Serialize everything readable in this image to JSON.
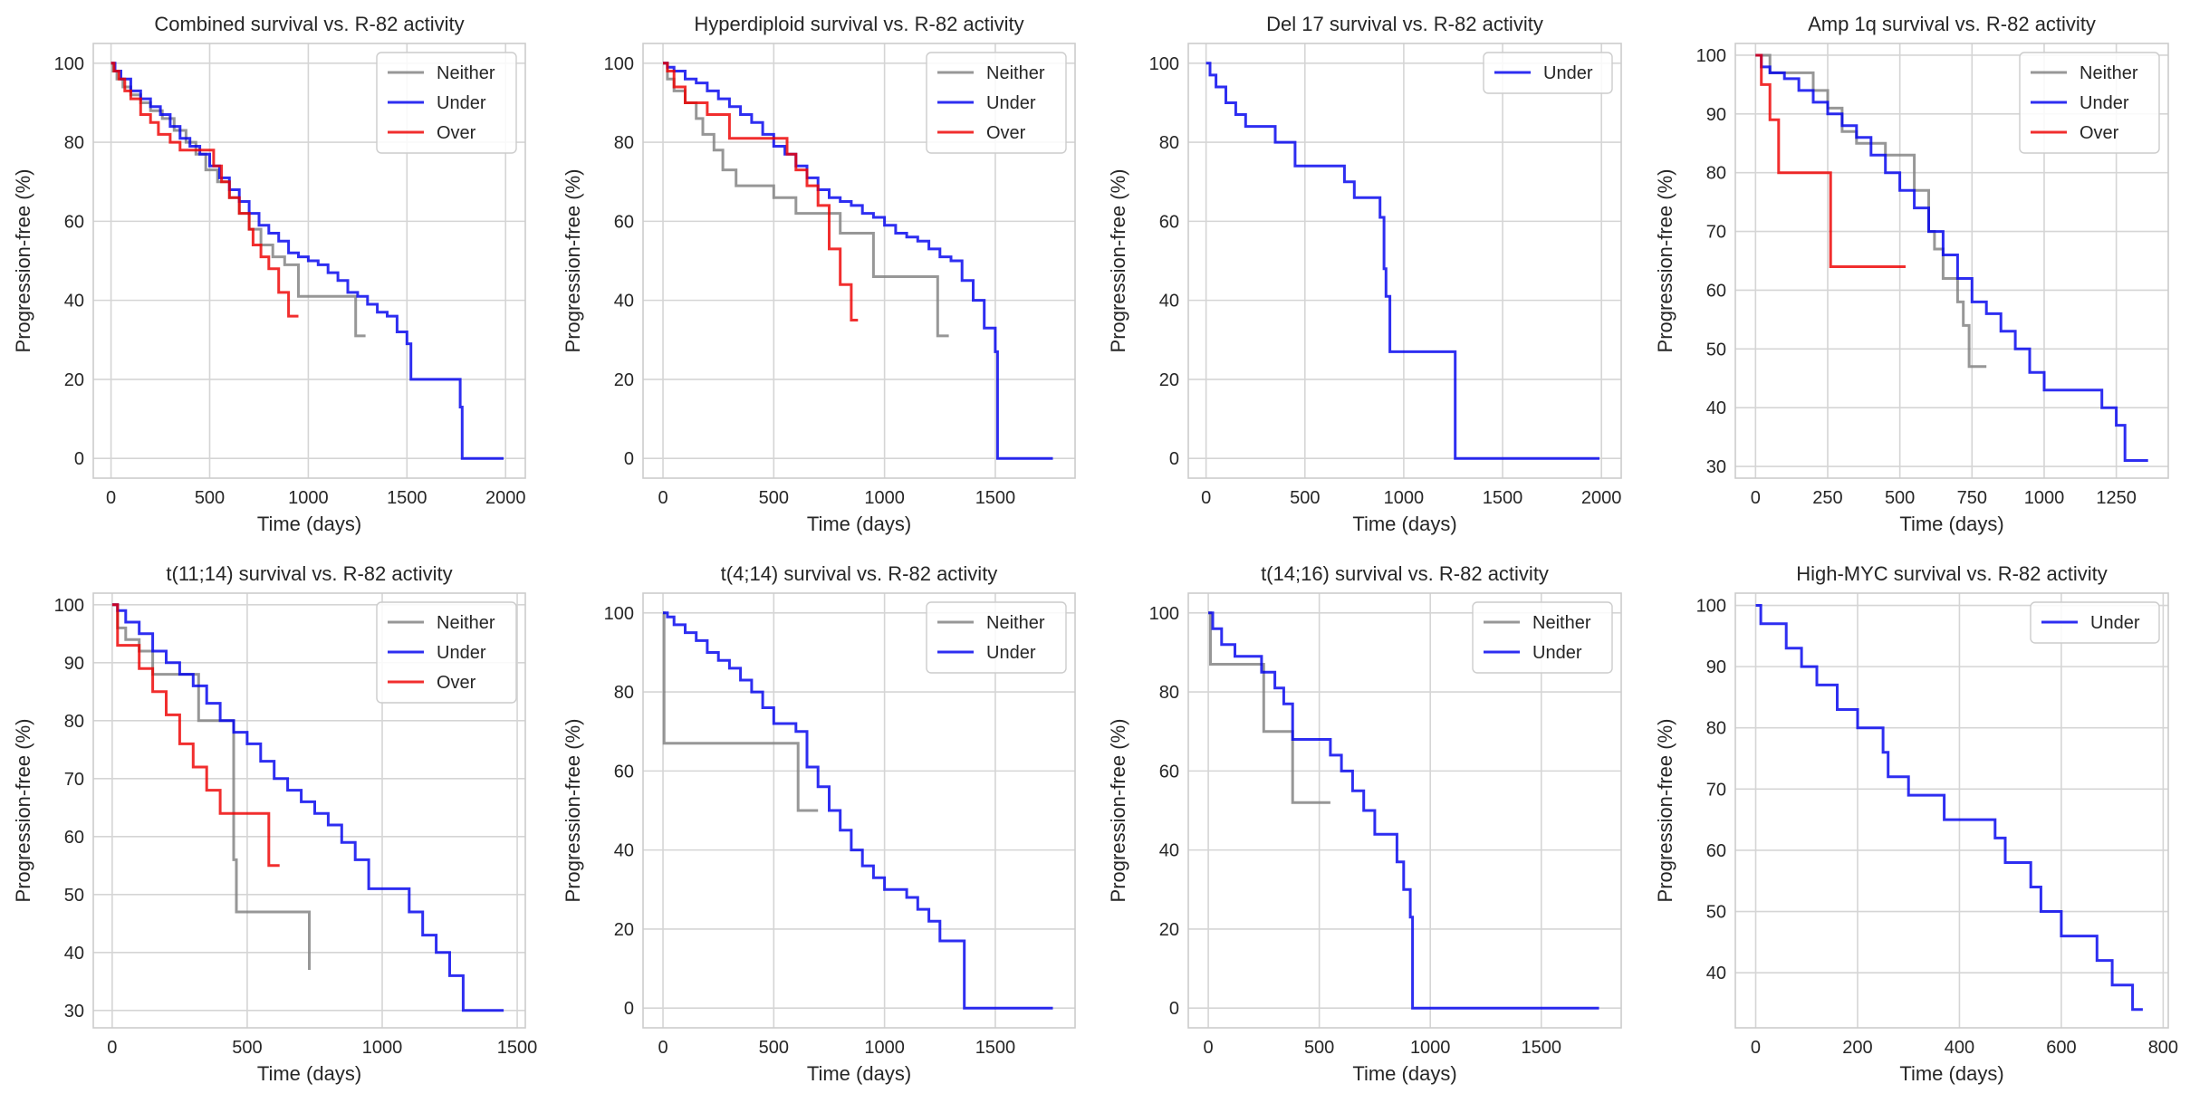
{
  "colors": {
    "Neither": "#808080",
    "Under": "#0000ee",
    "Over": "#ee0000"
  },
  "chart_data": [
    {
      "type": "line",
      "step": true,
      "title": "Combined survival vs. R-82 activity",
      "xlabel": "Time (days)",
      "ylabel": "Progression-free (%)",
      "xlim": [
        -90,
        2100
      ],
      "ylim": [
        -5,
        105
      ],
      "xticks": [
        0,
        500,
        1000,
        1500,
        2000
      ],
      "yticks": [
        0,
        20,
        40,
        60,
        80,
        100
      ],
      "legend": [
        "Neither",
        "Under",
        "Over"
      ],
      "series": [
        {
          "name": "Neither",
          "x": [
            0,
            10,
            30,
            60,
            100,
            150,
            200,
            260,
            320,
            380,
            430,
            480,
            540,
            600,
            650,
            700,
            760,
            820,
            880,
            950,
            1050,
            1150,
            1240,
            1290
          ],
          "y": [
            100,
            98,
            96,
            94,
            92,
            90,
            88,
            86,
            83,
            80,
            77,
            73,
            70,
            66,
            62,
            58,
            54,
            51,
            49,
            41,
            41,
            41,
            31,
            31
          ]
        },
        {
          "name": "Under",
          "x": [
            0,
            20,
            50,
            100,
            150,
            200,
            250,
            300,
            350,
            400,
            450,
            500,
            550,
            600,
            650,
            700,
            750,
            800,
            850,
            900,
            950,
            1000,
            1050,
            1100,
            1150,
            1200,
            1250,
            1300,
            1350,
            1400,
            1450,
            1500,
            1520,
            1600,
            1700,
            1770,
            1780,
            1800,
            1900,
            1990
          ],
          "y": [
            100,
            98,
            96,
            93,
            91,
            89,
            87,
            84,
            81,
            79,
            77,
            74,
            71,
            68,
            65,
            62,
            59,
            57,
            55,
            52,
            51,
            50,
            49,
            47,
            45,
            42,
            41,
            39,
            37,
            36,
            32,
            29,
            20,
            20,
            20,
            13,
            0,
            0,
            0,
            0
          ]
        },
        {
          "name": "Over",
          "x": [
            0,
            15,
            40,
            70,
            100,
            150,
            200,
            240,
            300,
            350,
            400,
            500,
            520,
            560,
            600,
            650,
            700,
            720,
            760,
            800,
            850,
            900,
            950
          ],
          "y": [
            100,
            98,
            96,
            93,
            91,
            87,
            85,
            82,
            80,
            78,
            78,
            78,
            74,
            70,
            66,
            62,
            58,
            54,
            51,
            48,
            42,
            36,
            36
          ]
        }
      ]
    },
    {
      "type": "line",
      "step": true,
      "title": "Hyperdiploid survival vs. R-82 activity",
      "xlabel": "Time (days)",
      "ylabel": "Progression-free (%)",
      "xlim": [
        -90,
        1860
      ],
      "ylim": [
        -5,
        105
      ],
      "xticks": [
        0,
        500,
        1000,
        1500
      ],
      "yticks": [
        0,
        20,
        40,
        60,
        80,
        100
      ],
      "legend": [
        "Neither",
        "Under",
        "Over"
      ],
      "series": [
        {
          "name": "Neither",
          "x": [
            0,
            20,
            50,
            100,
            150,
            180,
            230,
            270,
            330,
            400,
            500,
            560,
            600,
            700,
            800,
            950,
            1100,
            1240,
            1290
          ],
          "y": [
            100,
            96,
            93,
            90,
            86,
            82,
            78,
            73,
            69,
            69,
            66,
            66,
            62,
            62,
            57,
            46,
            46,
            31,
            31
          ]
        },
        {
          "name": "Under",
          "x": [
            0,
            20,
            50,
            100,
            150,
            200,
            250,
            300,
            350,
            400,
            450,
            500,
            550,
            600,
            650,
            700,
            750,
            800,
            850,
            900,
            950,
            1000,
            1050,
            1100,
            1150,
            1200,
            1250,
            1300,
            1350,
            1400,
            1450,
            1500,
            1510,
            1520,
            1600,
            1700,
            1760
          ],
          "y": [
            100,
            99,
            98,
            96,
            95,
            93,
            91,
            89,
            87,
            85,
            82,
            79,
            77,
            74,
            71,
            68,
            66,
            65,
            64,
            62,
            61,
            59,
            57,
            56,
            55,
            53,
            51,
            50,
            45,
            40,
            33,
            27,
            0,
            0,
            0,
            0,
            0
          ]
        },
        {
          "name": "Over",
          "x": [
            0,
            20,
            50,
            100,
            150,
            200,
            300,
            400,
            500,
            560,
            600,
            650,
            700,
            750,
            800,
            850,
            880
          ],
          "y": [
            100,
            98,
            94,
            90,
            90,
            87,
            81,
            81,
            81,
            77,
            73,
            69,
            64,
            53,
            44,
            35,
            35
          ]
        }
      ]
    },
    {
      "type": "line",
      "step": true,
      "title": "Del 17 survival vs. R-82 activity",
      "xlabel": "Time (days)",
      "ylabel": "Progression-free (%)",
      "xlim": [
        -90,
        2100
      ],
      "ylim": [
        -5,
        105
      ],
      "xticks": [
        0,
        500,
        1000,
        1500,
        2000
      ],
      "yticks": [
        0,
        20,
        40,
        60,
        80,
        100
      ],
      "legend": [
        "Under"
      ],
      "series": [
        {
          "name": "Under",
          "x": [
            0,
            20,
            50,
            100,
            150,
            200,
            350,
            450,
            550,
            650,
            700,
            750,
            880,
            900,
            910,
            930,
            1000,
            1240,
            1260,
            1500,
            1990
          ],
          "y": [
            100,
            97,
            94,
            90,
            87,
            84,
            80,
            74,
            74,
            74,
            70,
            66,
            61,
            48,
            41,
            27,
            27,
            27,
            0,
            0,
            0
          ]
        }
      ]
    },
    {
      "type": "line",
      "step": true,
      "title": "Amp 1q survival vs. R-82 activity",
      "xlabel": "Time (days)",
      "ylabel": "Progression-free (%)",
      "xlim": [
        -70,
        1430
      ],
      "ylim": [
        28,
        102
      ],
      "xticks": [
        0,
        250,
        500,
        750,
        1000,
        1250
      ],
      "yticks": [
        30,
        40,
        50,
        60,
        70,
        80,
        90,
        100
      ],
      "legend": [
        "Neither",
        "Under",
        "Over"
      ],
      "series": [
        {
          "name": "Neither",
          "x": [
            0,
            50,
            100,
            200,
            250,
            300,
            350,
            450,
            550,
            600,
            620,
            650,
            700,
            720,
            740,
            800
          ],
          "y": [
            100,
            97,
            97,
            94,
            91,
            87,
            85,
            83,
            77,
            70,
            67,
            62,
            58,
            54,
            47,
            47
          ]
        },
        {
          "name": "Under",
          "x": [
            0,
            20,
            50,
            100,
            150,
            200,
            250,
            300,
            350,
            400,
            450,
            500,
            550,
            600,
            650,
            700,
            750,
            800,
            850,
            900,
            950,
            1000,
            1050,
            1100,
            1150,
            1200,
            1250,
            1280,
            1300,
            1360
          ],
          "y": [
            100,
            98,
            97,
            96,
            94,
            92,
            90,
            88,
            86,
            83,
            80,
            77,
            74,
            70,
            66,
            62,
            58,
            56,
            53,
            50,
            46,
            43,
            43,
            43,
            43,
            40,
            37,
            31,
            31,
            31
          ]
        },
        {
          "name": "Over",
          "x": [
            0,
            20,
            50,
            80,
            150,
            260,
            300,
            400,
            520
          ],
          "y": [
            100,
            95,
            89,
            80,
            80,
            64,
            64,
            64,
            64
          ]
        }
      ]
    },
    {
      "type": "line",
      "step": true,
      "title": "t(11;14) survival vs. R-82 activity",
      "xlabel": "Time (days)",
      "ylabel": "Progression-free (%)",
      "xlim": [
        -70,
        1530
      ],
      "ylim": [
        27,
        102
      ],
      "xticks": [
        0,
        500,
        1000,
        1500
      ],
      "yticks": [
        30,
        40,
        50,
        60,
        70,
        80,
        90,
        100
      ],
      "legend": [
        "Neither",
        "Under",
        "Over"
      ],
      "series": [
        {
          "name": "Neither",
          "x": [
            0,
            20,
            50,
            100,
            150,
            200,
            250,
            320,
            380,
            440,
            450,
            460,
            470,
            600,
            700,
            730
          ],
          "y": [
            100,
            96,
            94,
            92,
            88,
            88,
            88,
            80,
            80,
            80,
            56,
            47,
            47,
            47,
            47,
            37
          ]
        },
        {
          "name": "Under",
          "x": [
            0,
            20,
            50,
            100,
            150,
            200,
            250,
            300,
            350,
            400,
            450,
            500,
            550,
            600,
            650,
            700,
            750,
            800,
            850,
            900,
            950,
            1000,
            1050,
            1100,
            1150,
            1200,
            1250,
            1300,
            1450
          ],
          "y": [
            100,
            99,
            97,
            95,
            92,
            90,
            88,
            86,
            83,
            80,
            78,
            76,
            73,
            70,
            68,
            66,
            64,
            62,
            59,
            56,
            51,
            51,
            51,
            47,
            43,
            40,
            36,
            30,
            30
          ]
        },
        {
          "name": "Over",
          "x": [
            0,
            20,
            60,
            100,
            150,
            200,
            250,
            300,
            350,
            400,
            450,
            500,
            550,
            580,
            600,
            620
          ],
          "y": [
            100,
            93,
            93,
            89,
            85,
            81,
            76,
            72,
            68,
            64,
            64,
            64,
            64,
            55,
            55,
            55
          ]
        }
      ]
    },
    {
      "type": "line",
      "step": true,
      "title": "t(4;14) survival vs. R-82 activity",
      "xlabel": "Time (days)",
      "ylabel": "Progression-free (%)",
      "xlim": [
        -90,
        1860
      ],
      "ylim": [
        -5,
        105
      ],
      "xticks": [
        0,
        500,
        1000,
        1500
      ],
      "yticks": [
        0,
        20,
        40,
        60,
        80,
        100
      ],
      "legend": [
        "Neither",
        "Under"
      ],
      "series": [
        {
          "name": "Neither",
          "x": [
            0,
            5,
            10,
            400,
            600,
            610,
            700
          ],
          "y": [
            100,
            67,
            67,
            67,
            67,
            50,
            50
          ]
        },
        {
          "name": "Under",
          "x": [
            0,
            20,
            50,
            100,
            150,
            200,
            250,
            300,
            350,
            400,
            450,
            500,
            550,
            600,
            650,
            700,
            750,
            800,
            850,
            900,
            950,
            1000,
            1050,
            1100,
            1150,
            1200,
            1250,
            1300,
            1350,
            1360,
            1500,
            1760
          ],
          "y": [
            100,
            99,
            97,
            95,
            93,
            90,
            88,
            86,
            83,
            80,
            76,
            72,
            72,
            70,
            61,
            56,
            50,
            45,
            40,
            36,
            33,
            30,
            30,
            28,
            25,
            22,
            17,
            17,
            17,
            0,
            0,
            0
          ]
        }
      ]
    },
    {
      "type": "line",
      "step": true,
      "title": "t(14;16) survival vs. R-82 activity",
      "xlabel": "Time (days)",
      "ylabel": "Progression-free (%)",
      "xlim": [
        -90,
        1860
      ],
      "ylim": [
        -5,
        105
      ],
      "xticks": [
        0,
        500,
        1000,
        1500
      ],
      "yticks": [
        0,
        20,
        40,
        60,
        80,
        100
      ],
      "legend": [
        "Neither",
        "Under"
      ],
      "series": [
        {
          "name": "Neither",
          "x": [
            0,
            10,
            50,
            200,
            250,
            300,
            380,
            450,
            550
          ],
          "y": [
            100,
            87,
            87,
            87,
            70,
            70,
            52,
            52,
            52
          ]
        },
        {
          "name": "Under",
          "x": [
            0,
            20,
            60,
            120,
            180,
            240,
            300,
            340,
            380,
            450,
            550,
            600,
            650,
            700,
            750,
            800,
            850,
            880,
            910,
            920,
            1000,
            1500,
            1760
          ],
          "y": [
            100,
            96,
            92,
            89,
            89,
            85,
            81,
            77,
            68,
            68,
            64,
            60,
            55,
            50,
            44,
            44,
            37,
            30,
            23,
            0,
            0,
            0,
            0
          ]
        }
      ]
    },
    {
      "type": "line",
      "step": true,
      "title": "High-MYC survival vs. R-82 activity",
      "xlabel": "Time (days)",
      "ylabel": "Progression-free (%)",
      "xlim": [
        -40,
        810
      ],
      "ylim": [
        31,
        102
      ],
      "xticks": [
        0,
        200,
        400,
        600,
        800
      ],
      "yticks": [
        40,
        50,
        60,
        70,
        80,
        90,
        100
      ],
      "legend": [
        "Under"
      ],
      "series": [
        {
          "name": "Under",
          "x": [
            0,
            10,
            60,
            90,
            120,
            160,
            200,
            250,
            260,
            300,
            370,
            400,
            450,
            470,
            490,
            540,
            560,
            600,
            670,
            700,
            740,
            760
          ],
          "y": [
            100,
            97,
            93,
            90,
            87,
            83,
            80,
            76,
            72,
            69,
            65,
            65,
            65,
            62,
            58,
            54,
            50,
            46,
            42,
            38,
            34,
            34
          ]
        }
      ]
    }
  ]
}
